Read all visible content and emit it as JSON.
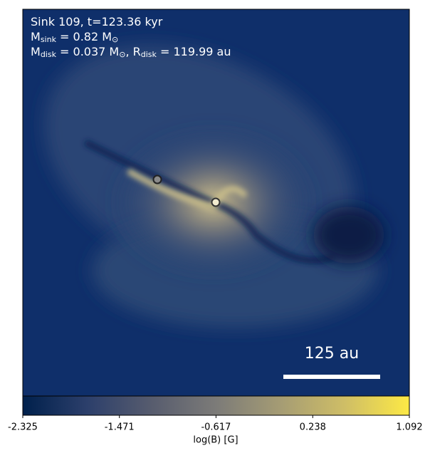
{
  "chart_data": {
    "type": "image",
    "annotations": [
      [
        "Sink 109, t=123.36 kyr"
      ],
      [
        "M",
        "sink",
        " = 0.82 M",
        "⊙"
      ],
      [
        "M",
        "disk",
        " = 0.037 M",
        "⊙",
        ", R",
        "disk",
        " = 119.99 au"
      ]
    ],
    "scale_bar_label": "125 au",
    "colorbar": {
      "label": "log(B) [G]",
      "lim": [
        -2.325,
        1.092
      ],
      "ticks": [
        -2.325,
        -1.471,
        -0.617,
        0.238,
        1.092
      ],
      "colors": [
        "#00204c",
        "#2c3f6b",
        "#575c6e",
        "#7c7b78",
        "#a59c74",
        "#cfbe66",
        "#fde945"
      ]
    }
  }
}
